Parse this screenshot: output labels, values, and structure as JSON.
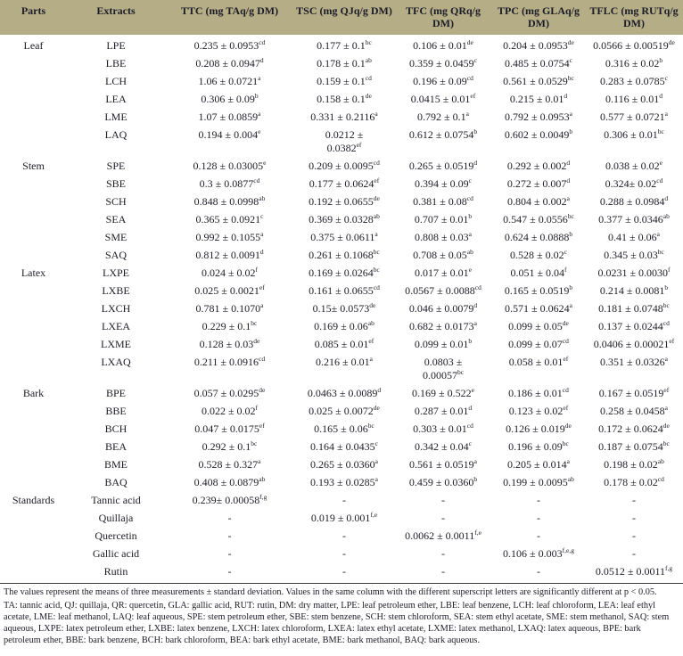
{
  "table": {
    "columns": [
      "Parts",
      "Extracts",
      "TTC (mg TAq/g DM)",
      "TSC (mg QJq/g DM)",
      "TFC (mg QRq/g DM)",
      "TPC (mg GLAq/g DM)",
      "TFLC (mg RUTq/g DM)"
    ],
    "groups": [
      {
        "name": "Leaf",
        "rows": [
          {
            "extract": "LPE",
            "values": [
              {
                "t": "0.235 ± 0.0953",
                "s": "cd"
              },
              {
                "t": "0.177 ± 0.1",
                "s": "bc"
              },
              {
                "t": "0.106 ± 0.01",
                "s": "de"
              },
              {
                "t": "0.204 ± 0.0953",
                "s": "de"
              },
              {
                "t": "0.0566 ± 0.00519",
                "s": "de"
              }
            ]
          },
          {
            "extract": "LBE",
            "values": [
              {
                "t": "0.208 ± 0.0947",
                "s": "d"
              },
              {
                "t": "0.178 ± 0.1",
                "s": "ab"
              },
              {
                "t": "0.359 ± 0.0459",
                "s": "c"
              },
              {
                "t": "0.485 ± 0.0754",
                "s": "c"
              },
              {
                "t": "0.316 ± 0.02",
                "s": "b"
              }
            ]
          },
          {
            "extract": "LCH",
            "values": [
              {
                "t": "1.06 ± 0.0721",
                "s": "a"
              },
              {
                "t": "0.159 ± 0.1",
                "s": "cd"
              },
              {
                "t": "0.196 ± 0.09",
                "s": "cd"
              },
              {
                "t": "0.561 ± 0.0529",
                "s": "bc"
              },
              {
                "t": "0.283 ± 0.0785",
                "s": "c"
              }
            ]
          },
          {
            "extract": "LEA",
            "values": [
              {
                "t": "0.306 ± 0.09",
                "s": "b"
              },
              {
                "t": "0.158 ± 0.1",
                "s": "de"
              },
              {
                "t": "0.0415 ± 0.01",
                "s": "ef"
              },
              {
                "t": "0.215 ± 0.01",
                "s": "d"
              },
              {
                "t": "0.116 ± 0.01",
                "s": "d"
              }
            ]
          },
          {
            "extract": "LME",
            "values": [
              {
                "t": "1.07 ± 0.0859",
                "s": "a"
              },
              {
                "t": "0.331 ± 0.2116",
                "s": "a"
              },
              {
                "t": "0.792 ± 0.1",
                "s": "a"
              },
              {
                "t": "0.792 ± 0.0953",
                "s": "a"
              },
              {
                "t": "0.577 ± 0.0721",
                "s": "a"
              }
            ]
          },
          {
            "extract": "LAQ",
            "values": [
              {
                "t": "0.194 ± 0.004",
                "s": "e"
              },
              {
                "t": "0.0212 ±\n0.0382",
                "s": "ef"
              },
              {
                "t": "0.612 ± 0.0754",
                "s": "b"
              },
              {
                "t": "0.602 ± 0.0049",
                "s": "b"
              },
              {
                "t": "0.306 ± 0.01",
                "s": "bc"
              }
            ]
          }
        ]
      },
      {
        "name": "Stem",
        "rows": [
          {
            "extract": "SPE",
            "values": [
              {
                "t": "0.128 ± 0.03005",
                "s": "e"
              },
              {
                "t": "0.209 ± 0.0095",
                "s": "cd"
              },
              {
                "t": "0.265 ± 0.0519",
                "s": "d"
              },
              {
                "t": "0.292 ± 0.002",
                "s": "d"
              },
              {
                "t": "0.038 ± 0.02",
                "s": "e"
              }
            ]
          },
          {
            "extract": "SBE",
            "values": [
              {
                "t": "0.3 ± 0.0877",
                "s": "cd"
              },
              {
                "t": "0.177 ± 0.0624",
                "s": "ef"
              },
              {
                "t": "0.394 ± 0.09",
                "s": "c"
              },
              {
                "t": "0.272 ± 0.007",
                "s": "d"
              },
              {
                "t": "0.324± 0.02",
                "s": "cd"
              }
            ]
          },
          {
            "extract": "SCH",
            "values": [
              {
                "t": "0.848 ± 0.0998",
                "s": "ab"
              },
              {
                "t": "0.192 ± 0.0655",
                "s": "de"
              },
              {
                "t": "0.381 ± 0.08",
                "s": "cd"
              },
              {
                "t": "0.804 ± 0.002",
                "s": "a"
              },
              {
                "t": "0.288 ± 0.0984",
                "s": "d"
              }
            ]
          },
          {
            "extract": "SEA",
            "values": [
              {
                "t": "0.365 ± 0.0921",
                "s": "c"
              },
              {
                "t": "0.369 ± 0.0328",
                "s": "ab"
              },
              {
                "t": "0.707 ± 0.01",
                "s": "b"
              },
              {
                "t": "0.547 ± 0.0556",
                "s": "bc"
              },
              {
                "t": "0.377 ± 0.0346",
                "s": "ab"
              }
            ]
          },
          {
            "extract": "SME",
            "values": [
              {
                "t": "0.992 ± 0.1055",
                "s": "a"
              },
              {
                "t": "0.375 ± 0.0611",
                "s": "a"
              },
              {
                "t": "0.808 ± 0.03",
                "s": "a"
              },
              {
                "t": "0.624 ± 0.0888",
                "s": "b"
              },
              {
                "t": "0.41 ± 0.06",
                "s": "a"
              }
            ]
          },
          {
            "extract": "SAQ",
            "values": [
              {
                "t": "0.812 ± 0.0091",
                "s": "d"
              },
              {
                "t": "0.261 ± 0.1068",
                "s": "bc"
              },
              {
                "t": "0.708 ± 0.05",
                "s": "ab"
              },
              {
                "t": "0.528 ± 0.02",
                "s": "c"
              },
              {
                "t": "0.345 ± 0.03",
                "s": "bc"
              }
            ]
          }
        ]
      },
      {
        "name": "Latex",
        "rows": [
          {
            "extract": "LXPE",
            "values": [
              {
                "t": "0.024 ± 0.02",
                "s": "f"
              },
              {
                "t": "0.169 ± 0.0264",
                "s": "bc"
              },
              {
                "t": "0.017 ± 0.01",
                "s": "e"
              },
              {
                "t": "0.051 ± 0.04",
                "s": "f"
              },
              {
                "t": "0.0231 ± 0.0030",
                "s": "f"
              }
            ]
          },
          {
            "extract": "LXBE",
            "values": [
              {
                "t": "0.025 ± 0.0021",
                "s": "ef"
              },
              {
                "t": "0.161 ± 0.0655",
                "s": "cd"
              },
              {
                "t": "0.0567 ± 0.0088",
                "s": "cd"
              },
              {
                "t": "0.165 ± 0.0519",
                "s": "b"
              },
              {
                "t": "0.214 ± 0.0081",
                "s": "b"
              }
            ]
          },
          {
            "extract": "LXCH",
            "values": [
              {
                "t": "0.781 ± 0.1070",
                "s": "a"
              },
              {
                "t": "0.15± 0.0573",
                "s": "de"
              },
              {
                "t": "0.046 ± 0.0079",
                "s": "d"
              },
              {
                "t": "0.571 ± 0.0624",
                "s": "a"
              },
              {
                "t": "0.181 ± 0.0748",
                "s": "bc"
              }
            ]
          },
          {
            "extract": "LXEA",
            "values": [
              {
                "t": "0.229 ± 0.1",
                "s": "bc"
              },
              {
                "t": "0.169 ± 0.06",
                "s": "ab"
              },
              {
                "t": "0.682 ± 0.0173",
                "s": "a"
              },
              {
                "t": "0.099 ± 0.05",
                "s": "de"
              },
              {
                "t": "0.137 ± 0.0244",
                "s": "cd"
              }
            ]
          },
          {
            "extract": "LXME",
            "values": [
              {
                "t": "0.128 ± 0.03",
                "s": "de"
              },
              {
                "t": "0.085 ± 0.01",
                "s": "ef"
              },
              {
                "t": "0.099 ± 0.01",
                "s": "b"
              },
              {
                "t": "0.099 ± 0.07",
                "s": "cd"
              },
              {
                "t": "0.0406 ± 0.00021",
                "s": "ef"
              }
            ]
          },
          {
            "extract": "LXAQ",
            "values": [
              {
                "t": "0.211 ± 0.0916",
                "s": "cd"
              },
              {
                "t": "0.216 ± 0.01",
                "s": "a"
              },
              {
                "t": "0.0803 ±\n0.00057",
                "s": "bc"
              },
              {
                "t": "0.058 ± 0.01",
                "s": "ef"
              },
              {
                "t": "0.351 ± 0.0326",
                "s": "a"
              }
            ]
          }
        ]
      },
      {
        "name": "Bark",
        "rows": [
          {
            "extract": "BPE",
            "values": [
              {
                "t": "0.057 ± 0.0295",
                "s": "de"
              },
              {
                "t": "0.0463 ± 0.0089",
                "s": "d"
              },
              {
                "t": "0.169 ± 0.522",
                "s": "e"
              },
              {
                "t": "0.186 ± 0.01",
                "s": "cd"
              },
              {
                "t": "0.167 ± 0.0519",
                "s": "ef"
              }
            ]
          },
          {
            "extract": "BBE",
            "values": [
              {
                "t": "0.022 ± 0.02",
                "s": "f"
              },
              {
                "t": "0.025 ± 0.0072",
                "s": "de"
              },
              {
                "t": "0.287 ± 0.01",
                "s": "d"
              },
              {
                "t": "0.123 ± 0.02",
                "s": "ef"
              },
              {
                "t": "0.258 ± 0.0458",
                "s": "a"
              }
            ]
          },
          {
            "extract": "BCH",
            "values": [
              {
                "t": "0.047 ± 0.0175",
                "s": "ef"
              },
              {
                "t": "0.165 ± 0.06",
                "s": "bc"
              },
              {
                "t": "0.303 ± 0.01",
                "s": "cd"
              },
              {
                "t": "0.126 ± 0.019",
                "s": "de"
              },
              {
                "t": "0.172 ± 0.0624",
                "s": "de"
              }
            ]
          },
          {
            "extract": "BEA",
            "values": [
              {
                "t": "0.292 ± 0.1",
                "s": "bc"
              },
              {
                "t": "0.164 ± 0.0435",
                "s": "c"
              },
              {
                "t": "0.342 ± 0.04",
                "s": "c"
              },
              {
                "t": "0.196 ± 0.09",
                "s": "bc"
              },
              {
                "t": "0.187 ± 0.0754",
                "s": "bc"
              }
            ]
          },
          {
            "extract": "BME",
            "values": [
              {
                "t": "0.528 ± 0.327",
                "s": "a"
              },
              {
                "t": "0.265 ± 0.0360",
                "s": "a"
              },
              {
                "t": "0.561 ± 0.0519",
                "s": "a"
              },
              {
                "t": "0.205 ± 0.014",
                "s": "a"
              },
              {
                "t": "0.198 ± 0.02",
                "s": "ab"
              }
            ]
          },
          {
            "extract": "BAQ",
            "values": [
              {
                "t": "0.408 ± 0.0879",
                "s": "ab"
              },
              {
                "t": "0.193 ± 0.0285",
                "s": "a"
              },
              {
                "t": "0.459 ± 0.0360",
                "s": "b"
              },
              {
                "t": "0.199 ± 0.0095",
                "s": "ab"
              },
              {
                "t": "0.178 ± 0.02",
                "s": "cd"
              }
            ]
          }
        ]
      },
      {
        "name": "Standards",
        "rows": [
          {
            "extract": "Tannic acid",
            "values": [
              {
                "t": "0.239± 0.00058",
                "s": "f,g"
              },
              "-",
              "-",
              "-",
              "-"
            ]
          },
          {
            "extract": "Quillaja",
            "values": [
              "-",
              {
                "t": "0.019 ± 0.001",
                "s": "f,e"
              },
              "-",
              "-",
              "-"
            ]
          },
          {
            "extract": "Quercetin",
            "values": [
              "-",
              "-",
              {
                "t": "0.0062 ± 0.0011",
                "s": "f,e"
              },
              "-",
              "-"
            ]
          },
          {
            "extract": "Gallic acid",
            "values": [
              "-",
              "-",
              "-",
              {
                "t": "0.106 ± 0.003",
                "s": "f,e,g"
              },
              "-"
            ]
          },
          {
            "extract": "Rutin",
            "values": [
              "-",
              "-",
              "-",
              "-",
              {
                "t": "0.0512 ± 0.0011",
                "s": "f,g"
              }
            ]
          }
        ]
      }
    ]
  },
  "footnotes": {
    "line1": "The values represent the means of three measurements ± standard deviation. Values in the same column with the different superscript letters are significantly different at p < 0.05.",
    "line2": "TA: tannic acid, QJ: quillaja, QR: quercetin, GLA: gallic acid, RUT: rutin, DM: dry matter, LPE: leaf petroleum ether, LBE: leaf benzene, LCH: leaf chloroform, LEA: leaf ethyl acetate, LME: leaf methanol, LAQ: leaf aqueous, SPE: stem petroleum ether, SBE: stem benzene, SCH: stem chloroform, SEA: stem ethyl acetate, SME: stem methanol, SAQ: stem aqueous, LXPE: latex petroleum ether, LXBE: latex benzene, LXCH: latex chloroform, LXEA: latex ethyl acetate, LXME: latex methanol, LXAQ: latex aqueous, BPE: bark petroleum ether, BBE: bark benzene, BCH: bark chloroform, BEA: bark ethyl acetate, BME: bark methanol, BAQ: bark aqueous."
  },
  "colors": {
    "header_bg": "#b5ad86",
    "text": "#1c1c28",
    "rule": "#3a3a3a"
  }
}
